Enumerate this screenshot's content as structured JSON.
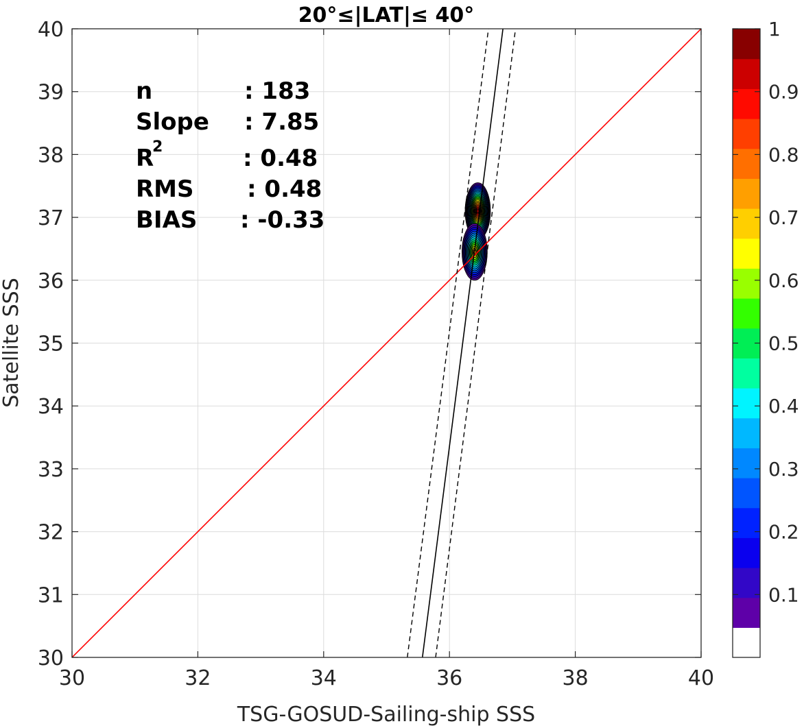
{
  "chart_data": {
    "type": "heatmap",
    "title": "20°≤|LAT|≤ 40°",
    "xlabel": "TSG-GOSUD-Sailing-ship SSS",
    "ylabel": "Satellite SSS",
    "xlim": [
      30,
      40
    ],
    "ylim": [
      30,
      40
    ],
    "xticks": [
      "30",
      "32",
      "34",
      "36",
      "38",
      "40"
    ],
    "yticks": [
      "30",
      "31",
      "32",
      "33",
      "34",
      "35",
      "36",
      "37",
      "38",
      "39",
      "40"
    ],
    "grid": true,
    "stats": [
      {
        "label": "n",
        "value": ": 183"
      },
      {
        "label": "Slope",
        "value": ": 7.85"
      },
      {
        "label": "R",
        "sup": "2",
        "value": ": 0.48"
      },
      {
        "label": "RMS",
        "value": ": 0.48"
      },
      {
        "label": "BIAS",
        "value": ": -0.33"
      }
    ],
    "identity_line": {
      "x": [
        30,
        40
      ],
      "y": [
        30,
        40
      ],
      "color": "#ff0000"
    },
    "regression_line": {
      "x": [
        35.57,
        36.85
      ],
      "y": [
        30,
        40
      ],
      "color": "#000000"
    },
    "confidence_lines": [
      {
        "x": [
          35.33,
          36.62
        ],
        "y": [
          30,
          40
        ]
      },
      {
        "x": [
          35.78,
          37.05
        ],
        "y": [
          30,
          40
        ]
      }
    ],
    "density_peaks": [
      {
        "name": "upper",
        "x": 36.45,
        "y": 37.1,
        "max": 1.0
      },
      {
        "name": "lower",
        "x": 36.4,
        "y": 36.45,
        "max": 0.75
      }
    ],
    "colorbar": {
      "min": 0,
      "max": 1,
      "ticks": [
        "0.1",
        "0.2",
        "0.3",
        "0.4",
        "0.5",
        "0.6",
        "0.7",
        "0.8",
        "0.9",
        "1"
      ],
      "colors": [
        "#ffffff",
        "#5e00a8",
        "#3207c7",
        "#0a00ee",
        "#0022ff",
        "#0055ff",
        "#0088ff",
        "#00b8ff",
        "#00f4ff",
        "#00ffa0",
        "#00ee55",
        "#33ff00",
        "#99ff00",
        "#ffff00",
        "#ffcf00",
        "#ff9f00",
        "#ff6f00",
        "#ff3f00",
        "#ff0a00",
        "#cc0000",
        "#880000"
      ]
    }
  }
}
